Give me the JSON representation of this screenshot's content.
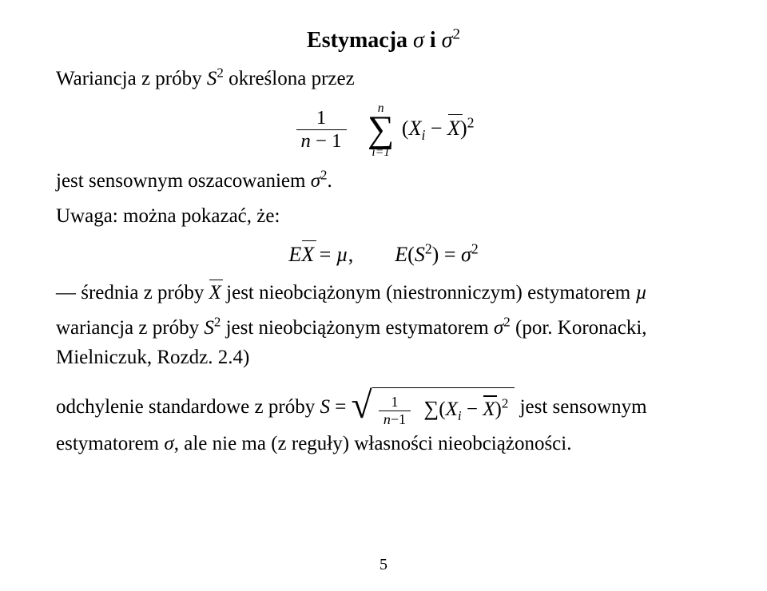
{
  "title": {
    "prefix": "Estymacja ",
    "sigma": "σ",
    "and": " i ",
    "sigma2": "σ",
    "exp2": "2"
  },
  "p1": {
    "pre": "Wariancja z próby ",
    "S": "S",
    "sq": "2",
    "post": " określona przez"
  },
  "eq1": {
    "frac": {
      "num": "1",
      "denL": "n",
      "denOp": " − ",
      "denR": "1"
    },
    "sum": {
      "top": "n",
      "bot": "i=1"
    },
    "open": "(",
    "Xi_X": "X",
    "Xi_i": "i",
    "minus": " − ",
    "Xbar": "X",
    "close": ")",
    "pow": "2"
  },
  "p2": {
    "pre": "jest sensownym oszacowaniem ",
    "sigma": "σ",
    "sq": "2",
    "dot": "."
  },
  "p3": "Uwaga: można pokazać, że:",
  "eq2": {
    "E1": "E",
    "Xbar": "X",
    "eq": " = ",
    "mu": "µ",
    "comma": ",",
    "gap": "  ",
    "E2": "E",
    "open": "(",
    "S": "S",
    "sq": "2",
    "close": ")",
    "eq2": " = ",
    "sigma": "σ",
    "sq2": "2"
  },
  "p4": {
    "dash": "— ",
    "pre": "średnia z próby ",
    "Xbar": "X",
    "post": " jest nieobciążonym (niestronniczym) estymatorem ",
    "mu": "µ"
  },
  "p5": {
    "pre": "wariancja z próby ",
    "S": "S",
    "sq": "2",
    "mid": " jest nieobciążonym estymatorem ",
    "sigma": "σ",
    "sq2": "2",
    "post": " (por. Koronacki, Mielniczuk, Rozdz. 2.4)"
  },
  "p6": {
    "pre": "odchylenie standardowe z próby ",
    "S": "S",
    "eq": " = ",
    "frac": {
      "num": "1",
      "denL": "n",
      "denOp": "−",
      "denR": "1"
    },
    "sum": "∑",
    "open": "(",
    "Xi_X": "X",
    "Xi_i": "i",
    "minus": " − ",
    "Xbar": "X",
    "close": ")",
    "pow": "2",
    "post1": " jest sensownym",
    "post2": "estymatorem ",
    "sigma": "σ",
    "post3": ", ale nie ma (z reguły) własności nieobciążoności."
  },
  "pageno": "5",
  "colors": {
    "text": "#000000",
    "bg": "#ffffff"
  },
  "typography": {
    "body_fontsize_pt": 19,
    "title_fontsize_pt": 21,
    "family": "Times New Roman"
  }
}
